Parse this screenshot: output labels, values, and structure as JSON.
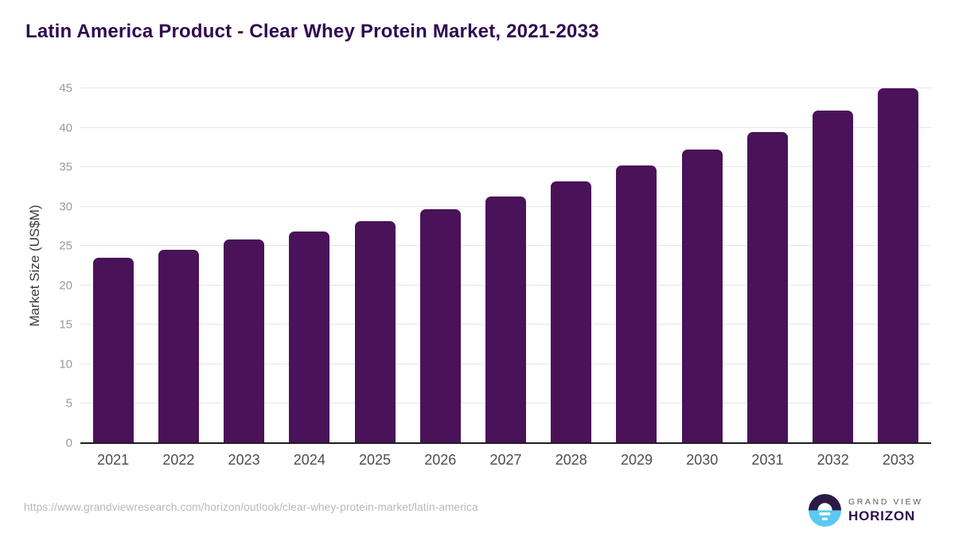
{
  "header": {
    "title": "Latin America Product - Clear Whey Protein Market, 2021-2033"
  },
  "chart_data": {
    "type": "bar",
    "title": "Latin America Product - Clear Whey Protein Market, 2021-2033",
    "categories": [
      "2021",
      "2022",
      "2023",
      "2024",
      "2025",
      "2026",
      "2027",
      "2028",
      "2029",
      "2030",
      "2031",
      "2032",
      "2033"
    ],
    "values": [
      23.5,
      24.5,
      25.8,
      26.8,
      28.2,
      29.7,
      31.3,
      33.2,
      35.2,
      37.2,
      39.5,
      42.2,
      45.0
    ],
    "xlabel": "",
    "ylabel": "Market Size (US$M)",
    "ylim": [
      0,
      45
    ],
    "yticks": [
      0,
      5,
      10,
      15,
      20,
      25,
      30,
      35,
      40,
      45
    ],
    "grid": true,
    "legend": false,
    "bar_color": "#4a1259"
  },
  "footer": {
    "source_url": "https://www.grandviewresearch.com/horizon/outlook/clear-whey-protein-market/latin-america",
    "logo": {
      "brand_top": "GRAND VIEW",
      "brand_bottom": "HORIZON"
    }
  },
  "colors": {
    "accent_purple": "#300a50",
    "bar_purple": "#4a1259",
    "logo_dark": "#2a1a45",
    "logo_blue": "#5bc9f2",
    "gridline": "#e6e6e6",
    "axis_line": "#1f1f1f",
    "ytick_text": "#999999",
    "xtick_text": "#4d4d4d",
    "url_text": "#b8b8b8"
  }
}
